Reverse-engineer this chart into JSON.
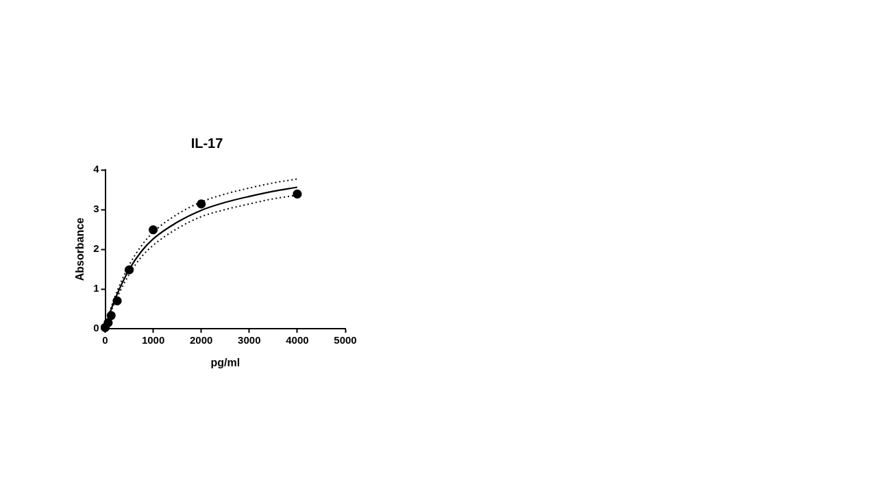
{
  "chart_data": {
    "type": "scatter",
    "title": "IL-17",
    "xlabel": "pg/ml",
    "ylabel": "Absorbance",
    "xlim": [
      0,
      5000
    ],
    "xticks": [
      0,
      1000,
      2000,
      3000,
      4000,
      5000
    ],
    "ylim": [
      0,
      4
    ],
    "yticks": [
      0,
      1,
      2,
      3,
      4
    ],
    "grid": false,
    "legend": false,
    "series": [
      {
        "color": "#000000",
        "marker": "circle",
        "x": [
          0,
          62.5,
          125,
          250,
          500,
          1000,
          2000,
          4000
        ],
        "values": [
          0.03,
          0.15,
          0.33,
          0.7,
          1.48,
          2.49,
          3.14,
          3.39
        ]
      },
      {
        "type": "line",
        "color": "#000000",
        "marker": "none",
        "line_style": "solid",
        "x": [
          0,
          62.5,
          125,
          250,
          500,
          750,
          1000,
          1500,
          2000,
          2500,
          3000,
          3500,
          4000
        ],
        "values": [
          0,
          0.26,
          0.49,
          0.87,
          1.49,
          1.94,
          2.26,
          2.68,
          2.98,
          3.18,
          3.33,
          3.46,
          3.56
        ]
      },
      {
        "type": "line",
        "color": "#000000",
        "marker": "none",
        "line_style": "dotted",
        "x": [
          0,
          62.5,
          125,
          250,
          500,
          750,
          1000,
          1500,
          2000,
          2500,
          3000,
          3500,
          4000
        ],
        "values": [
          0,
          0.29,
          0.54,
          0.95,
          1.6,
          2.08,
          2.43,
          2.88,
          3.19,
          3.39,
          3.54,
          3.67,
          3.77
        ]
      },
      {
        "type": "line",
        "color": "#000000",
        "marker": "none",
        "line_style": "dotted",
        "x": [
          0,
          62.5,
          125,
          250,
          500,
          750,
          1000,
          1500,
          2000,
          2500,
          3000,
          3500,
          4000
        ],
        "values": [
          0,
          0.23,
          0.44,
          0.79,
          1.37,
          1.8,
          2.1,
          2.52,
          2.82,
          3.0,
          3.14,
          3.27,
          3.36
        ]
      }
    ]
  }
}
